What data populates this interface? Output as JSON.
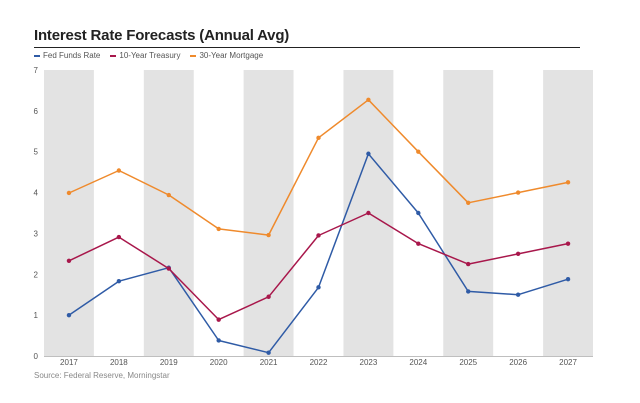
{
  "chart_data": {
    "type": "line",
    "title": "Interest Rate Forecasts (Annual Avg)",
    "source": "Source: Federal Reserve, Morningstar",
    "x": [
      "2017",
      "2018",
      "2019",
      "2020",
      "2021",
      "2022",
      "2023",
      "2024",
      "2025",
      "2026",
      "2027"
    ],
    "ylim": [
      0,
      7
    ],
    "yticks": [
      "0",
      "1",
      "2",
      "3",
      "4",
      "5",
      "6",
      "7"
    ],
    "grid": "alternating vertical bands",
    "legend_position": "top-left",
    "series": [
      {
        "name": "Fed Funds Rate",
        "color": "#2f5ba6",
        "values": [
          1.0,
          1.83,
          2.16,
          0.38,
          0.08,
          1.68,
          4.95,
          3.5,
          1.58,
          1.5,
          1.88
        ]
      },
      {
        "name": "10-Year Treasury",
        "color": "#a8174b",
        "values": [
          2.33,
          2.91,
          2.14,
          0.89,
          1.45,
          2.95,
          3.5,
          2.75,
          2.25,
          2.5,
          2.75
        ]
      },
      {
        "name": "30-Year Mortgage",
        "color": "#ef8a2c",
        "values": [
          3.99,
          4.54,
          3.94,
          3.11,
          2.96,
          5.34,
          6.27,
          5.0,
          3.75,
          4.0,
          4.25
        ]
      }
    ]
  }
}
